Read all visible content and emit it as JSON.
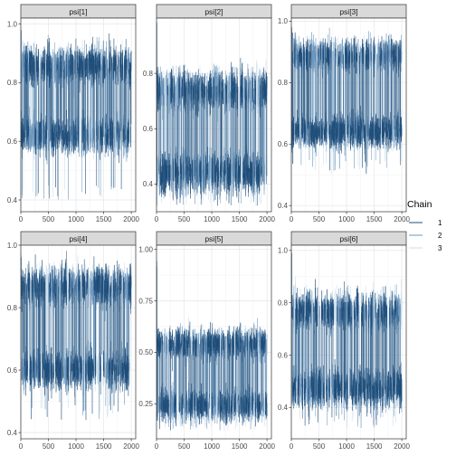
{
  "chart_data": {
    "type": "line",
    "facet_layout": {
      "rows": 2,
      "cols": 3
    },
    "x_ticks": [
      0,
      500,
      1000,
      1500,
      2000
    ],
    "xlim": [
      0,
      2080
    ],
    "iterations": 2000,
    "legend": {
      "title": "Chain",
      "position": "right",
      "entries": [
        {
          "label": "1",
          "color": "#1f4e79"
        },
        {
          "label": "2",
          "color": "#6d97bd"
        },
        {
          "label": "3",
          "color": "#c8dcea"
        }
      ]
    },
    "panels": [
      {
        "title": "psi[1]",
        "ylim": [
          0.36,
          1.02
        ],
        "y_ticks": [
          0.4,
          0.6,
          0.8,
          1.0
        ],
        "y_tick_labels": [
          "0.4",
          "0.6",
          "0.8",
          "1.0"
        ],
        "modes": [
          0.62,
          0.86
        ],
        "high_mode_weight": 0.5,
        "noise_sd": 0.03,
        "tail_low": 0.4,
        "tail_high": 0.99,
        "seed": 11
      },
      {
        "title": "psi[2]",
        "ylim": [
          0.3,
          1.0
        ],
        "y_ticks": [
          0.4,
          0.6,
          0.8
        ],
        "y_tick_labels": [
          "0.4",
          "0.6",
          "0.8"
        ],
        "modes": [
          0.44,
          0.74
        ],
        "high_mode_weight": 0.5,
        "noise_sd": 0.035,
        "tail_low": 0.32,
        "tail_high": 0.99,
        "seed": 23
      },
      {
        "title": "psi[3]",
        "ylim": [
          0.38,
          1.01
        ],
        "y_ticks": [
          0.4,
          0.6,
          0.8,
          1.0
        ],
        "y_tick_labels": [
          "0.4",
          "0.6",
          "0.8",
          "1.0"
        ],
        "modes": [
          0.64,
          0.89
        ],
        "high_mode_weight": 0.5,
        "noise_sd": 0.025,
        "tail_low": 0.5,
        "tail_high": 0.99,
        "seed": 37
      },
      {
        "title": "psi[4]",
        "ylim": [
          0.38,
          1.0
        ],
        "y_ticks": [
          0.4,
          0.6,
          0.8,
          1.0
        ],
        "y_tick_labels": [
          "0.4",
          "0.6",
          "0.8",
          "1.0"
        ],
        "modes": [
          0.6,
          0.87
        ],
        "high_mode_weight": 0.5,
        "noise_sd": 0.03,
        "tail_low": 0.44,
        "tail_high": 0.98,
        "seed": 41
      },
      {
        "title": "psi[5]",
        "ylim": [
          0.08,
          1.02
        ],
        "y_ticks": [
          0.25,
          0.5,
          0.75,
          1.0
        ],
        "y_tick_labels": [
          "0.25",
          "0.50",
          "0.75",
          "1.00"
        ],
        "modes": [
          0.24,
          0.54
        ],
        "high_mode_weight": 0.5,
        "noise_sd": 0.035,
        "tail_low": 0.12,
        "tail_high": 0.95,
        "seed": 53
      },
      {
        "title": "psi[6]",
        "ylim": [
          0.28,
          1.02
        ],
        "y_ticks": [
          0.4,
          0.6,
          0.8,
          1.0
        ],
        "y_tick_labels": [
          "0.4",
          "0.6",
          "0.8",
          "1.0"
        ],
        "modes": [
          0.47,
          0.77
        ],
        "high_mode_weight": 0.5,
        "noise_sd": 0.035,
        "tail_low": 0.32,
        "tail_high": 1.0,
        "seed": 67
      }
    ]
  }
}
